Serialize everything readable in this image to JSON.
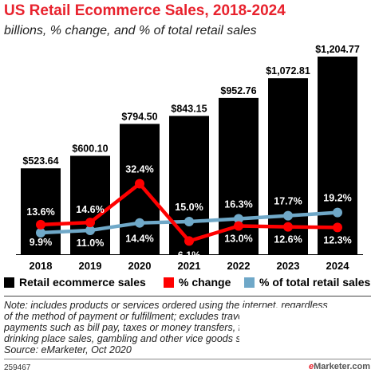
{
  "title": "US Retail Ecommerce Sales, 2018-2024",
  "subtitle": "billions, % change, and % of total retail sales",
  "colors": {
    "bars": "#000000",
    "change": "#ff0000",
    "share": "#6fa8c8",
    "title": "#e8222d"
  },
  "chart_data": {
    "type": "bar",
    "categories": [
      "2018",
      "2019",
      "2020",
      "2021",
      "2022",
      "2023",
      "2024"
    ],
    "series": [
      {
        "name": "Retail ecommerce sales",
        "type": "bar",
        "values": [
          523.64,
          600.1,
          794.5,
          843.15,
          952.76,
          1072.81,
          1204.77
        ],
        "labels": [
          "$523.64",
          "$600.10",
          "$794.50",
          "$843.15",
          "$952.76",
          "$1,072.81",
          "$1,204.77"
        ]
      },
      {
        "name": "% change",
        "type": "line",
        "values": [
          13.6,
          14.6,
          32.4,
          6.1,
          13.0,
          12.6,
          12.3
        ],
        "labels": [
          "13.6%",
          "14.6%",
          "32.4%",
          "6.1%",
          "13.0%",
          "12.6%",
          "12.3%"
        ]
      },
      {
        "name": "% of total retail sales",
        "type": "line",
        "values": [
          9.9,
          11.0,
          14.4,
          15.0,
          16.3,
          17.7,
          19.2
        ],
        "labels": [
          "9.9%",
          "11.0%",
          "14.4%",
          "15.0%",
          "16.3%",
          "17.7%",
          "19.2%"
        ]
      }
    ],
    "legend_position": "bottom"
  },
  "legend": [
    "Retail ecommerce sales",
    "% change",
    "% of total retail sales"
  ],
  "note_lines": [
    "Note: includes products or services ordered using the internet, regardless",
    "of the method of payment or fulfillment; excludes travel and event tickets,",
    "payments such as bill pay, taxes or money transfers, food services and",
    "drinking place sales, gambling and other vice goods sales",
    "Source: eMarketer, Oct 2020"
  ],
  "chart_id": "259467",
  "logo": {
    "prefix": "e",
    "text": "Marketer.com"
  }
}
